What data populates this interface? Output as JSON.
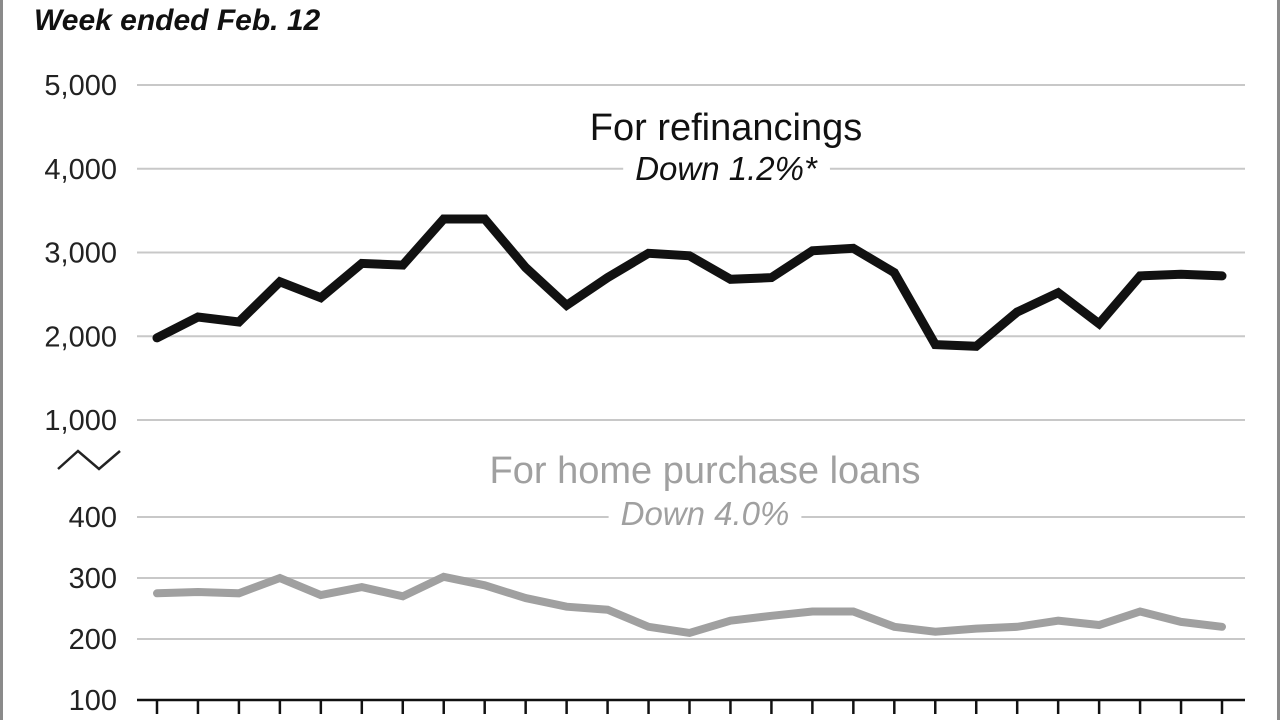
{
  "chart_data": {
    "type": "line",
    "subtitle": "Week ended Feb. 12",
    "y_ticks_upper": [
      "5,000",
      "4,000",
      "3,000",
      "2,000",
      "1,000"
    ],
    "y_ticks_lower": [
      "400",
      "300",
      "200",
      "100"
    ],
    "ylim_upper": [
      1000,
      5000
    ],
    "ylim_lower": [
      100,
      400
    ],
    "axis_break": true,
    "grid": true,
    "x_count": 27,
    "series": [
      {
        "name": "For refinancings",
        "note": "Down 1.2%*",
        "color": "#111111",
        "panel": "upper",
        "values": [
          1980,
          2230,
          2170,
          2650,
          2460,
          2870,
          2850,
          3400,
          3400,
          2820,
          2370,
          2700,
          2990,
          2960,
          2680,
          2700,
          3020,
          3050,
          2760,
          1900,
          1880,
          2290,
          2520,
          2150,
          2720,
          2740,
          2720
        ]
      },
      {
        "name": "For home purchase loans",
        "note": "Down 4.0%",
        "color": "#a0a0a0",
        "panel": "lower",
        "values": [
          275,
          277,
          275,
          300,
          272,
          285,
          270,
          302,
          288,
          267,
          253,
          248,
          220,
          210,
          230,
          238,
          245,
          245,
          220,
          212,
          217,
          220,
          230,
          223,
          245,
          228,
          220
        ]
      }
    ]
  }
}
